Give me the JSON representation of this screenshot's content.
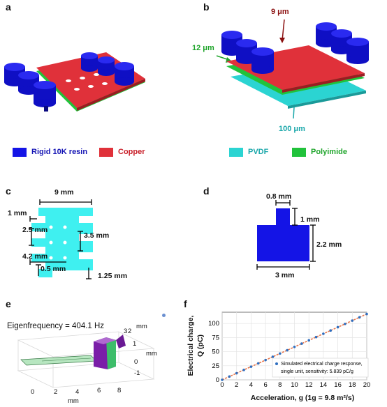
{
  "panels": {
    "a": {
      "letter": "a"
    },
    "b": {
      "letter": "b",
      "label_top": "9 μm",
      "label_left": "12 μm",
      "label_bottom": "100 μm"
    },
    "c": {
      "letter": "c",
      "dims": [
        "9 mm",
        "1 mm",
        "2.5 mm",
        "3.5 mm",
        "4.2 mm",
        "0.5 mm",
        "1.25 mm"
      ]
    },
    "d": {
      "letter": "d",
      "dims": [
        "0.8 mm",
        "1 mm",
        "2.2 mm",
        "3 mm"
      ]
    },
    "e": {
      "letter": "e",
      "eigen": "Eigenfrequency = 404.1 Hz",
      "xticks": [
        "0",
        "2",
        "4",
        "6",
        "8"
      ],
      "xunit": "mm",
      "zticks": [
        "3",
        "2",
        "1",
        "0",
        "-1"
      ],
      "zunit_top": "mm",
      "zunit_side": "mm"
    },
    "f": {
      "letter": "f"
    }
  },
  "legend": {
    "items": [
      {
        "label": "Rigid 10K resin",
        "color": "#1414e6",
        "text_color": "#1414b4"
      },
      {
        "label": "Copper",
        "color": "#e0313a",
        "text_color": "#c81e28"
      },
      {
        "label": "PVDF",
        "color": "#2bd4d2",
        "text_color": "#1aa7aa"
      },
      {
        "label": "Polyimide",
        "color": "#21c23b",
        "text_color": "#1fa52b"
      }
    ]
  },
  "colors": {
    "resin": "#1414e6",
    "copper": "#e0313a",
    "pvdf": "#2bd4d2",
    "polyimide": "#21c23b",
    "plate_c": "#3ff0f0",
    "fit_line": "#e8764a",
    "points": "#2f6fc0",
    "purple": "#7a1ea8",
    "plate_green": "#b7e6c0"
  },
  "chart_data": {
    "type": "scatter",
    "x": [
      0,
      1,
      2,
      3,
      4,
      5,
      6,
      7,
      8,
      9,
      10,
      11,
      12,
      13,
      14,
      15,
      16,
      17,
      18,
      19,
      20
    ],
    "series": [
      {
        "name": "Simulated electrical charge response, single unit, sensitivity: 5.839 pC/g",
        "values": [
          0,
          5.839,
          11.678,
          17.517,
          23.356,
          29.195,
          35.034,
          40.873,
          46.712,
          52.551,
          58.39,
          64.229,
          70.068,
          75.907,
          81.746,
          87.585,
          93.424,
          99.263,
          105.102,
          110.941,
          116.78
        ]
      }
    ],
    "legend_lines": [
      "Simulated electrical charge response,",
      "single unit, sensitivity: 5.839 pC/g"
    ],
    "xlabel": "Acceleration, g (1g = 9.8 m²/s)",
    "ylabel_line1": "Electrical charge,",
    "ylabel_line2": "Q (pC)",
    "xlim": [
      0,
      20
    ],
    "ylim": [
      0,
      120
    ],
    "xticks": [
      0,
      2,
      4,
      6,
      8,
      10,
      12,
      14,
      16,
      18,
      20
    ],
    "yticks": [
      0,
      25,
      50,
      75,
      100
    ],
    "grid": true,
    "legend_position": "bottom-right"
  }
}
